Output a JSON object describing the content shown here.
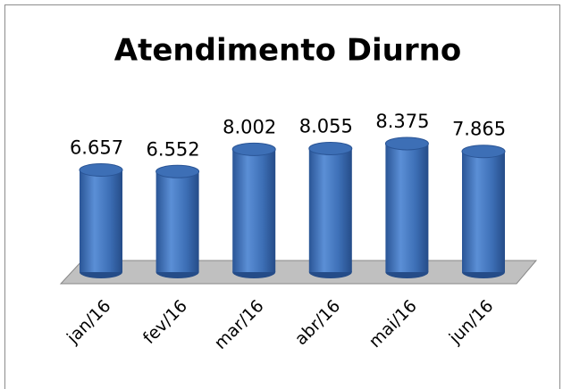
{
  "chart_data": {
    "type": "bar3d",
    "title": "Atendimento Diurno",
    "categories": [
      "jan/16",
      "fev/16",
      "mar/16",
      "abr/16",
      "mai/16",
      "jun/16"
    ],
    "values": [
      6657,
      6552,
      8002,
      8055,
      8375,
      7865
    ],
    "value_labels": [
      "6.657",
      "6.552",
      "8.002",
      "8.055",
      "8.375",
      "7.865"
    ],
    "color": "#3d6fb6"
  }
}
